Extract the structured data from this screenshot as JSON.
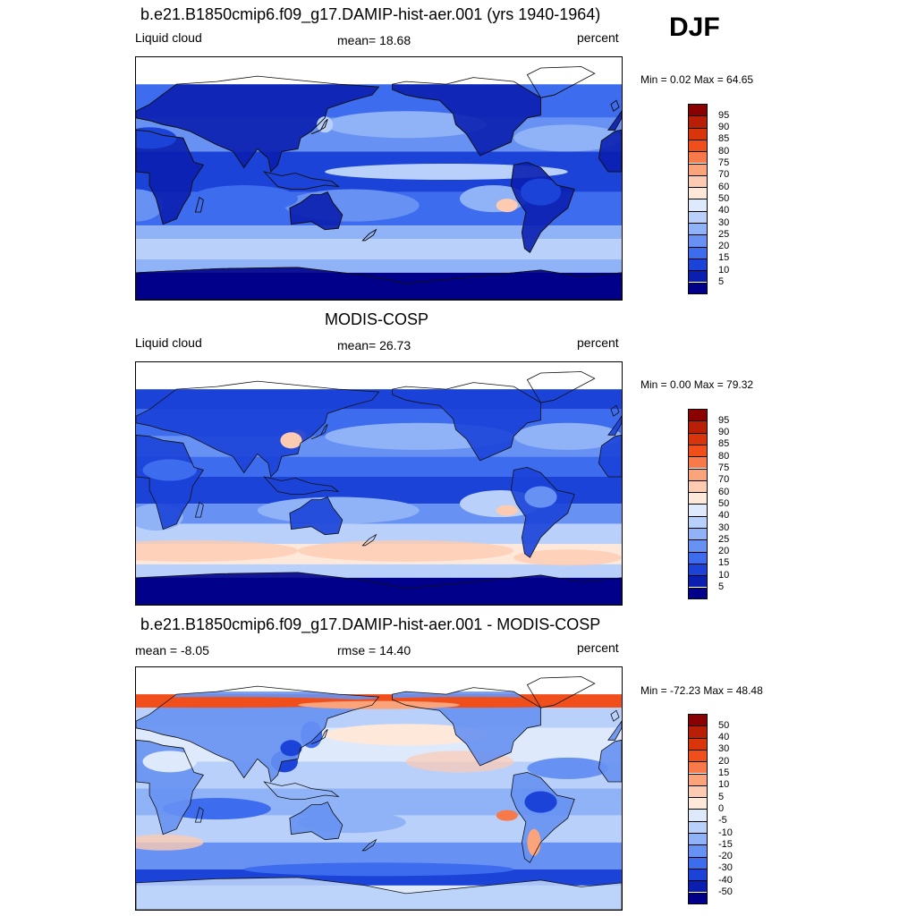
{
  "season": "DJF",
  "panels": [
    {
      "title": "b.e21.B1850cmip6.f09_g17.DAMIP-hist-aer.001 (yrs 1940-1964)",
      "left_label": "Liquid cloud",
      "center_label": "mean=  18.68",
      "right_label": "percent",
      "minmax": "Min =   0.02 Max =  64.65",
      "field": "model"
    },
    {
      "title": "MODIS-COSP",
      "left_label": "Liquid cloud",
      "center_label": "mean=  26.73",
      "right_label": "percent",
      "minmax": "Min =   0.00 Max =  79.32",
      "field": "obs"
    },
    {
      "title": "b.e21.B1850cmip6.f09_g17.DAMIP-hist-aer.001 - MODIS-COSP",
      "left_label": "mean =  -8.05",
      "center_label": "rmse =  14.40",
      "right_label": "percent",
      "minmax": "Min = -72.23 Max =  48.48",
      "field": "diff"
    }
  ],
  "colorbars": {
    "abs_levels": [
      "95",
      "90",
      "85",
      "80",
      "75",
      "70",
      "60",
      "50",
      "40",
      "30",
      "25",
      "20",
      "15",
      "10",
      "5"
    ],
    "abs_colors": [
      "#8b0000",
      "#b81f06",
      "#d8350a",
      "#f04f1c",
      "#f8794a",
      "#fba47c",
      "#fdcab2",
      "#fde8da",
      "#deeafb",
      "#b9d1fa",
      "#90b2f7",
      "#6791f2",
      "#3d6cee",
      "#1b43d8",
      "#0a1fb0",
      "#00008b"
    ],
    "diff_levels": [
      "50",
      "40",
      "30",
      "20",
      "15",
      "10",
      "5",
      "0",
      "-5",
      "-10",
      "-15",
      "-20",
      "-30",
      "-40",
      "-50"
    ],
    "diff_colors": [
      "#8b0000",
      "#b81f06",
      "#d8350a",
      "#f04f1c",
      "#f8794a",
      "#fba47c",
      "#fdcab2",
      "#fde8da",
      "#deeafb",
      "#b9d1fa",
      "#90b2f7",
      "#6791f2",
      "#3d6cee",
      "#1b43d8",
      "#0a1fb0",
      "#00008b"
    ]
  }
}
